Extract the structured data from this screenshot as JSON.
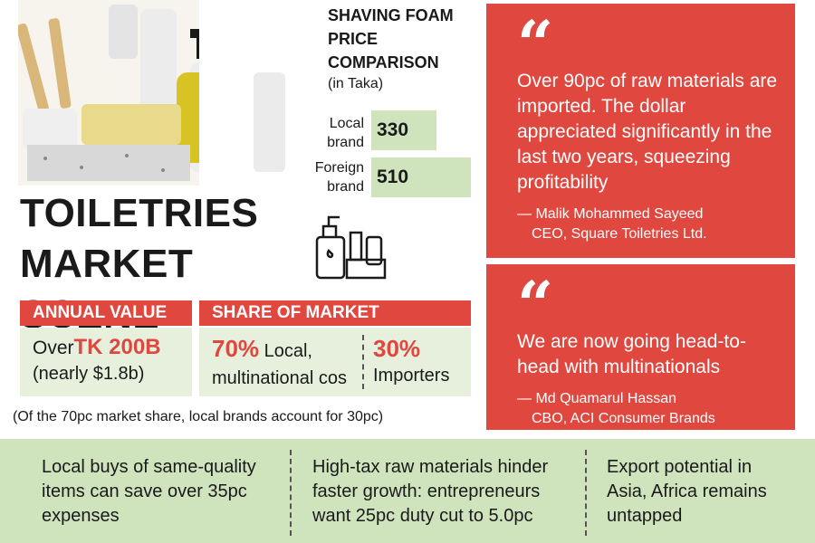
{
  "price": {
    "title": "SHAVING FOAM PRICE COMPARISON",
    "unit": "(in Taka)",
    "rows": [
      {
        "label": "Local brand",
        "value": 330
      },
      {
        "label": "Foreign brand",
        "value": 510
      }
    ]
  },
  "title": "TOILETRIES MARKET SCENE",
  "annual": {
    "header": "ANNUAL VALUE",
    "prefix": "Over",
    "highlight": "TK 200B",
    "sub": "(nearly $1.8b)"
  },
  "share": {
    "header": "SHARE OF MARKET",
    "items": [
      {
        "pct": "70%",
        "text": "Local, multinational cos"
      },
      {
        "pct": "30%",
        "text": "Importers"
      }
    ]
  },
  "note": "(Of the 70pc market share, local brands account for 30pc)",
  "quotes": [
    {
      "text": "Over 90pc of raw materials are imported. The dollar appreciated significantly in the last two years, squeezing profitability",
      "author": "— Malik Mohammed Sayeed",
      "role": "CEO, Square Toiletries Ltd."
    },
    {
      "text": "We are now going head-to-head with multinationals",
      "author": "— Md Quamarul Hassan",
      "role": "CBO, ACI Consumer Brands"
    }
  ],
  "points": [
    "Local buys of same-quality items can save over 35pc expenses",
    "High-tax raw materials hinder faster growth: entrepreneurs want 25pc duty cut to 5.0pc",
    "Export potential in Asia, Africa remains untapped"
  ]
}
